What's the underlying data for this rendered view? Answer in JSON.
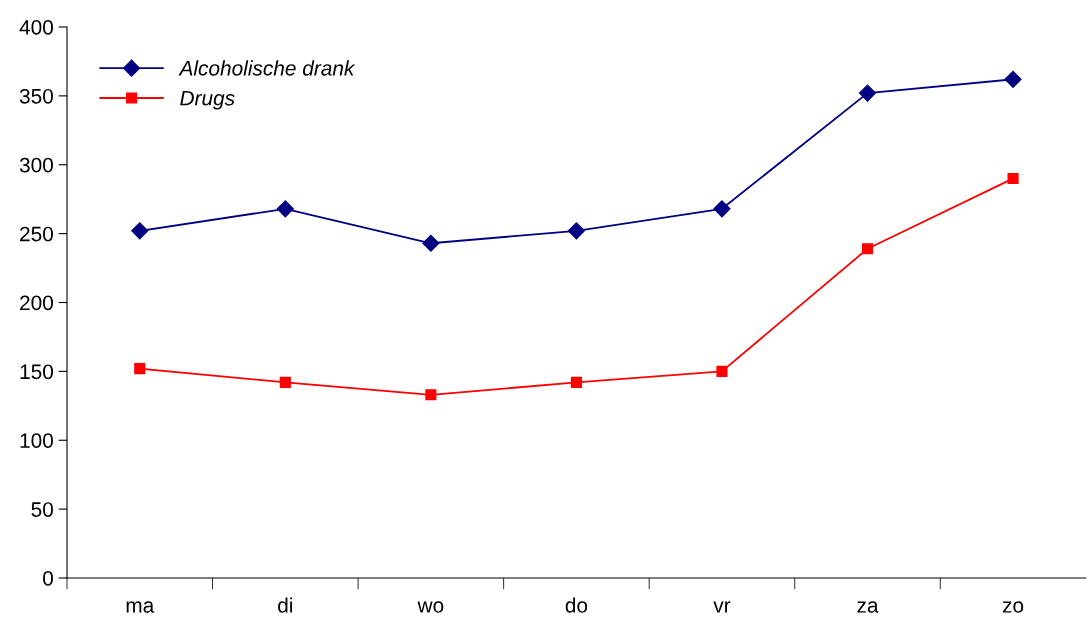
{
  "chart_data": {
    "type": "line",
    "categories": [
      "ma",
      "di",
      "wo",
      "do",
      "vr",
      "za",
      "zo"
    ],
    "series": [
      {
        "name": "Alcoholische drank",
        "color": "#000080",
        "marker": "diamond",
        "values": [
          252,
          268,
          243,
          252,
          268,
          352,
          362
        ]
      },
      {
        "name": "Drugs",
        "color": "#ff0000",
        "marker": "square",
        "values": [
          152,
          142,
          133,
          142,
          150,
          239,
          290
        ]
      }
    ],
    "ylim": [
      0,
      400
    ],
    "yticks": [
      0,
      50,
      100,
      150,
      200,
      250,
      300,
      350,
      400
    ],
    "grid": false,
    "legend": "top left",
    "line_style": "solid"
  }
}
